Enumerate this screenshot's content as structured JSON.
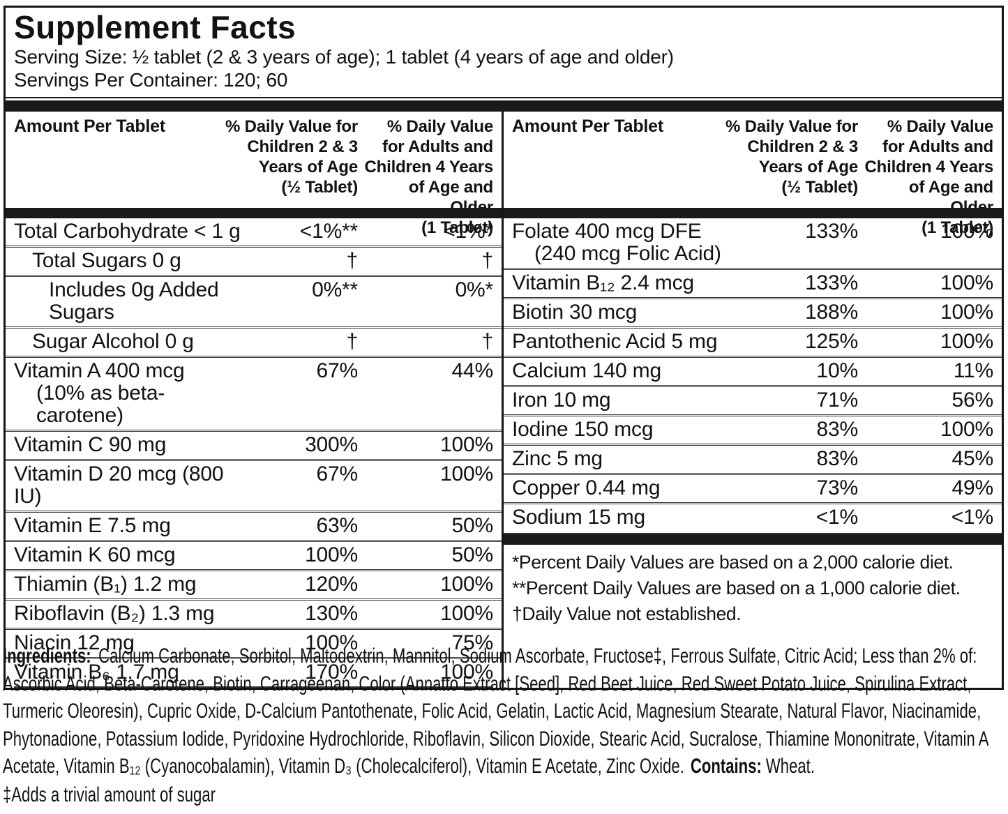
{
  "header": {
    "title": "Supplement Facts",
    "serving_size": "Serving Size:  ½ tablet (2 & 3 years of age); 1 tablet (4 years of age and older)",
    "servings_per_container": "Servings Per Container:  120; 60"
  },
  "table": {
    "columns": {
      "amount": "Amount Per Tablet",
      "dv_children": "% Daily Value for\nChildren 2 & 3\nYears of Age\n(½ Tablet)",
      "dv_adults": "% Daily Value\nfor Adults and\nChildren 4 Years\nof Age and Older\n(1 Tablet)"
    },
    "left": {
      "rows": [
        {
          "name": "Total Carbohydrate < 1 g",
          "indent": 0,
          "dv_children": "<1%**",
          "dv_adults": "<1%*"
        },
        {
          "name": "Total Sugars 0 g",
          "indent": 1,
          "dv_children": "†",
          "dv_adults": "†"
        },
        {
          "name": "Includes 0g Added Sugars",
          "indent": 2,
          "dv_children": "0%**",
          "dv_adults": "0%*"
        },
        {
          "name": "Sugar Alcohol 0 g",
          "indent": 1,
          "dv_children": "†",
          "dv_adults": "†"
        },
        {
          "name": "Vitamin A 400 mcg",
          "name2": "(10% as beta-carotene)",
          "indent": 0,
          "dv_children": "67%",
          "dv_adults": "44%"
        },
        {
          "name": "Vitamin C 90 mg",
          "indent": 0,
          "dv_children": "300%",
          "dv_adults": "100%"
        },
        {
          "name": "Vitamin D 20 mcg (800 IU)",
          "indent": 0,
          "dv_children": "67%",
          "dv_adults": "100%"
        },
        {
          "name": "Vitamin E 7.5 mg",
          "indent": 0,
          "dv_children": "63%",
          "dv_adults": "50%"
        },
        {
          "name": "Vitamin K 60 mcg",
          "indent": 0,
          "dv_children": "100%",
          "dv_adults": "50%"
        },
        {
          "name": "Thiamin (B₁) 1.2 mg",
          "indent": 0,
          "dv_children": "120%",
          "dv_adults": "100%"
        },
        {
          "name": "Riboflavin (B₂) 1.3 mg",
          "indent": 0,
          "dv_children": "130%",
          "dv_adults": "100%"
        },
        {
          "name": "Niacin 12 mg",
          "indent": 0,
          "dv_children": "100%",
          "dv_adults": "75%"
        },
        {
          "name": "Vitamin B₆ 1.7 mg",
          "indent": 0,
          "dv_children": "170%",
          "dv_adults": "100%"
        }
      ]
    },
    "right": {
      "rows": [
        {
          "name": "Folate 400 mcg DFE",
          "name2": "(240 mcg Folic Acid)",
          "indent": 0,
          "dv_children": "133%",
          "dv_adults": "100%"
        },
        {
          "name": "Vitamin B₁₂ 2.4 mcg",
          "indent": 0,
          "dv_children": "133%",
          "dv_adults": "100%"
        },
        {
          "name": "Biotin 30 mcg",
          "indent": 0,
          "dv_children": "188%",
          "dv_adults": "100%"
        },
        {
          "name": "Pantothenic Acid 5 mg",
          "indent": 0,
          "dv_children": "125%",
          "dv_adults": "100%"
        },
        {
          "name": "Calcium 140 mg",
          "indent": 0,
          "dv_children": "10%",
          "dv_adults": "11%"
        },
        {
          "name": "Iron 10 mg",
          "indent": 0,
          "dv_children": "71%",
          "dv_adults": "56%"
        },
        {
          "name": "Iodine 150 mcg",
          "indent": 0,
          "dv_children": "83%",
          "dv_adults": "100%"
        },
        {
          "name": "Zinc 5 mg",
          "indent": 0,
          "dv_children": "83%",
          "dv_adults": "45%"
        },
        {
          "name": "Copper 0.44 mg",
          "indent": 0,
          "dv_children": "73%",
          "dv_adults": "49%"
        },
        {
          "name": "Sodium 15 mg",
          "indent": 0,
          "dv_children": "<1%",
          "dv_adults": "<1%"
        }
      ]
    }
  },
  "footnotes": [
    "*Percent Daily Values are based on a 2,000 calorie diet.",
    "**Percent Daily Values are based on a 1,000 calorie diet.",
    "†Daily Value not established."
  ],
  "ingredients": {
    "label": "Ingredients:",
    "text": "Calcium Carbonate, Sorbitol, Maltodextrin, Mannitol, Sodium Ascorbate, Fructose‡, Ferrous Sulfate, Citric Acid; Less than 2% of: Ascorbic Acid, Beta-Carotene, Biotin, Carrageenan, Color (Annatto Extract [Seed], Red Beet Juice, Red Sweet Potato Juice, Spirulina Extract, Turmeric Oleoresin), Cupric Oxide, D-Calcium Pantothenate, Folic Acid, Gelatin, Lactic Acid, Magnesium Stearate, Natural Flavor, Niacinamide, Phytonadione, Potassium Iodide, Pyridoxine Hydrochloride, Riboflavin, Silicon Dioxide, Stearic Acid, Sucralose, Thiamine Mononitrate, Vitamin A Acetate, Vitamin B₁₂ (Cyanocobalamin), Vitamin D₃ (Cholecalciferol), Vitamin E Acetate, Zinc Oxide.",
    "contains_label": "Contains:",
    "contains_value": "Wheat.",
    "sugar_note": "‡Adds a trivial amount of sugar"
  },
  "colors": {
    "text": "#121212",
    "border": "#151515",
    "background": "#ffffff"
  }
}
